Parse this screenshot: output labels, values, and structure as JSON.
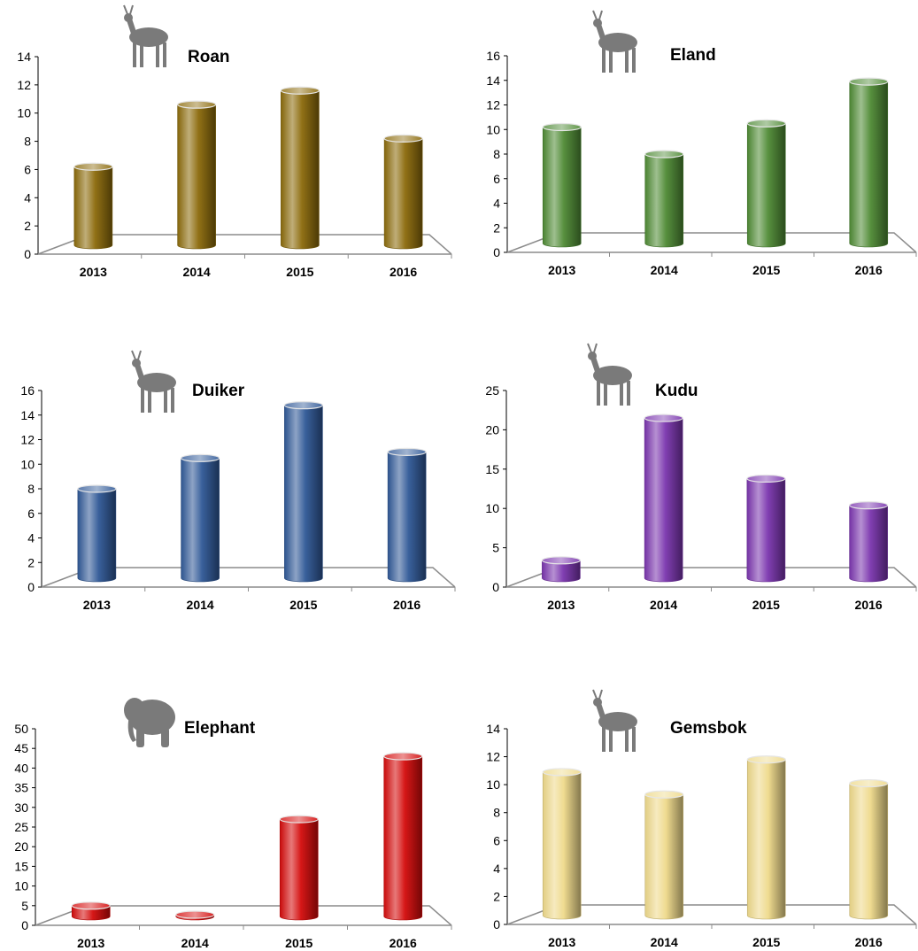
{
  "chart_data": [
    {
      "type": "bar",
      "title": "Roan",
      "icon": "roan-antelope-icon",
      "color": "#8B6A0A",
      "categories": [
        "2013",
        "2014",
        "2015",
        "2016"
      ],
      "values": [
        6.2,
        10.6,
        11.6,
        8.2
      ],
      "ylim": [
        0,
        14
      ],
      "yticks": [
        "0",
        "2",
        "4",
        "6",
        "8",
        "10",
        "12",
        "14"
      ],
      "grid": false
    },
    {
      "type": "bar",
      "title": "Eland",
      "icon": "eland-antelope-icon",
      "color": "#4E8A34",
      "categories": [
        "2013",
        "2014",
        "2015",
        "2016"
      ],
      "values": [
        10.2,
        8.0,
        10.5,
        13.9
      ],
      "ylim": [
        0,
        16
      ],
      "yticks": [
        "0",
        "2",
        "4",
        "6",
        "8",
        "10",
        "12",
        "14",
        "16"
      ],
      "grid": false
    },
    {
      "type": "bar",
      "title": "Duiker",
      "icon": "duiker-antelope-icon",
      "color": "#2F5896",
      "categories": [
        "2013",
        "2014",
        "2015",
        "2016"
      ],
      "values": [
        8.0,
        10.5,
        14.8,
        11.0
      ],
      "ylim": [
        0,
        16
      ],
      "yticks": [
        "0",
        "2",
        "4",
        "6",
        "8",
        "10",
        "12",
        "14",
        "16"
      ],
      "grid": false
    },
    {
      "type": "bar",
      "title": "Kudu",
      "icon": "kudu-antelope-icon",
      "color": "#7A35AE",
      "categories": [
        "2013",
        "2014",
        "2015",
        "2016"
      ],
      "values": [
        3.4,
        21.5,
        13.8,
        10.4
      ],
      "ylim": [
        0,
        25
      ],
      "yticks": [
        "0",
        "5",
        "10",
        "15",
        "20",
        "25"
      ],
      "grid": false
    },
    {
      "type": "bar",
      "title": "Elephant",
      "icon": "elephant-icon",
      "color": "#D40B0B",
      "categories": [
        "2013",
        "2014",
        "2015",
        "2016"
      ],
      "values": [
        5,
        1,
        27,
        43
      ],
      "ylim": [
        0,
        50
      ],
      "yticks": [
        "0",
        "5",
        "10",
        "15",
        "20",
        "25",
        "30",
        "35",
        "40",
        "45",
        "50"
      ],
      "grid": false
    },
    {
      "type": "bar",
      "title": "Gemsbok",
      "icon": "gemsbok-oryx-icon",
      "color": "#EED98A",
      "categories": [
        "2013",
        "2014",
        "2015",
        "2016"
      ],
      "values": [
        10.9,
        9.3,
        11.8,
        10.1
      ],
      "ylim": [
        0,
        14
      ],
      "yticks": [
        "0",
        "2",
        "4",
        "6",
        "8",
        "10",
        "12",
        "14"
      ],
      "grid": false
    }
  ]
}
